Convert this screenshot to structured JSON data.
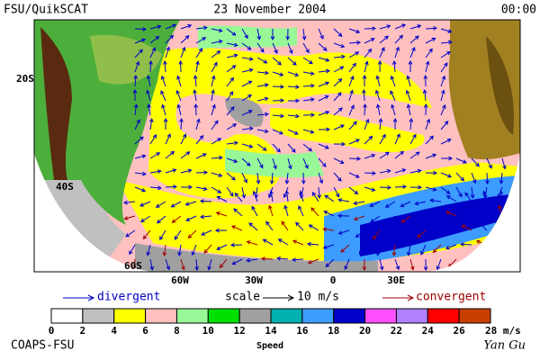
{
  "header": {
    "title": "FSU/QuikSCAT",
    "date": "23 November 2004",
    "time": "00:00"
  },
  "map": {
    "lat_labels": [
      "20S",
      "40S",
      "60S"
    ],
    "lon_labels": [
      "60W",
      "30W",
      "0",
      "30E"
    ]
  },
  "legend": {
    "divergent": "divergent",
    "scale": "scale",
    "scale_value": "10 m/s",
    "convergent": "convergent"
  },
  "colorbar": {
    "label": "Speed",
    "ticks": [
      0,
      2,
      4,
      6,
      8,
      10,
      12,
      14,
      16,
      18,
      20,
      22,
      24,
      26,
      {
        "value": 28,
        "label": "28 m/s"
      }
    ],
    "colors": [
      "#ffffff",
      "#c0c0c0",
      "#ffff00",
      "#ffc0c0",
      "#98f898",
      "#00e000",
      "#a0a0a0",
      "#00b0b0",
      "#3c9cff",
      "#0000c8",
      "#ff50ff",
      "#b080ff",
      "#ff0000",
      "#c84000",
      "#000000"
    ]
  },
  "footer": {
    "left": "COAPS-FSU",
    "right": "Yan Gu"
  }
}
